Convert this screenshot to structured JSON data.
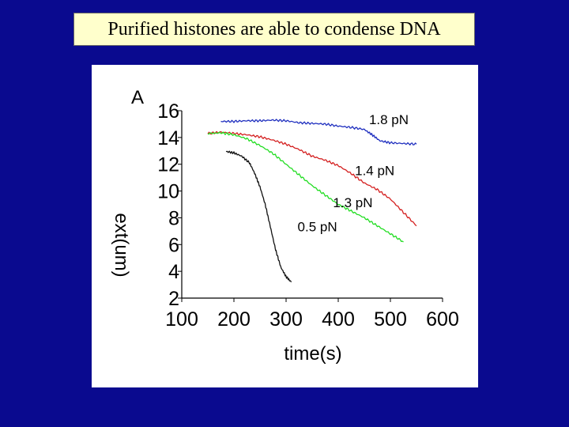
{
  "slide": {
    "title": "Purified histones are able to condense DNA"
  },
  "chart_data": {
    "type": "line",
    "panel_label": "A",
    "xlabel": "time(s)",
    "ylabel": "ext(um)",
    "xlim": [
      100,
      600
    ],
    "ylim": [
      2,
      16
    ],
    "xticks": [
      100,
      200,
      300,
      400,
      500,
      600
    ],
    "yticks": [
      2,
      4,
      6,
      8,
      10,
      12,
      14,
      16
    ],
    "grid": false,
    "series": [
      {
        "name": "1.8 pN",
        "color": "#1f2fbf",
        "x": [
          175,
          200,
          225,
          250,
          275,
          300,
          325,
          350,
          375,
          400,
          425,
          450,
          465,
          480,
          500,
          525,
          550
        ],
        "y": [
          15.2,
          15.2,
          15.25,
          15.25,
          15.3,
          15.25,
          15.1,
          15.05,
          15.0,
          14.85,
          14.75,
          14.6,
          14.2,
          13.75,
          13.6,
          13.55,
          13.5
        ]
      },
      {
        "name": "1.4 pN",
        "color": "#d42020",
        "x": [
          150,
          175,
          200,
          225,
          250,
          275,
          300,
          325,
          350,
          375,
          400,
          425,
          450,
          475,
          500,
          525,
          550
        ],
        "y": [
          14.3,
          14.4,
          14.3,
          14.2,
          14.05,
          13.8,
          13.5,
          13.1,
          12.6,
          12.3,
          11.9,
          11.3,
          10.6,
          10.1,
          9.4,
          8.4,
          7.4
        ]
      },
      {
        "name": "1.3 pN",
        "color": "#22dd22",
        "x": [
          150,
          175,
          200,
          225,
          250,
          275,
          300,
          325,
          350,
          375,
          400,
          425,
          450,
          475,
          500,
          525
        ],
        "y": [
          14.3,
          14.35,
          14.2,
          13.9,
          13.4,
          12.8,
          12.0,
          11.2,
          10.4,
          9.7,
          9.0,
          8.5,
          8.0,
          7.4,
          6.8,
          6.2
        ]
      },
      {
        "name": "0.5 pN",
        "color": "#111111",
        "x": [
          185,
          200,
          215,
          230,
          240,
          250,
          260,
          270,
          280,
          290,
          300,
          310
        ],
        "y": [
          12.95,
          12.85,
          12.6,
          12.1,
          11.3,
          10.3,
          9.0,
          7.3,
          5.6,
          4.3,
          3.6,
          3.2
        ]
      }
    ]
  }
}
